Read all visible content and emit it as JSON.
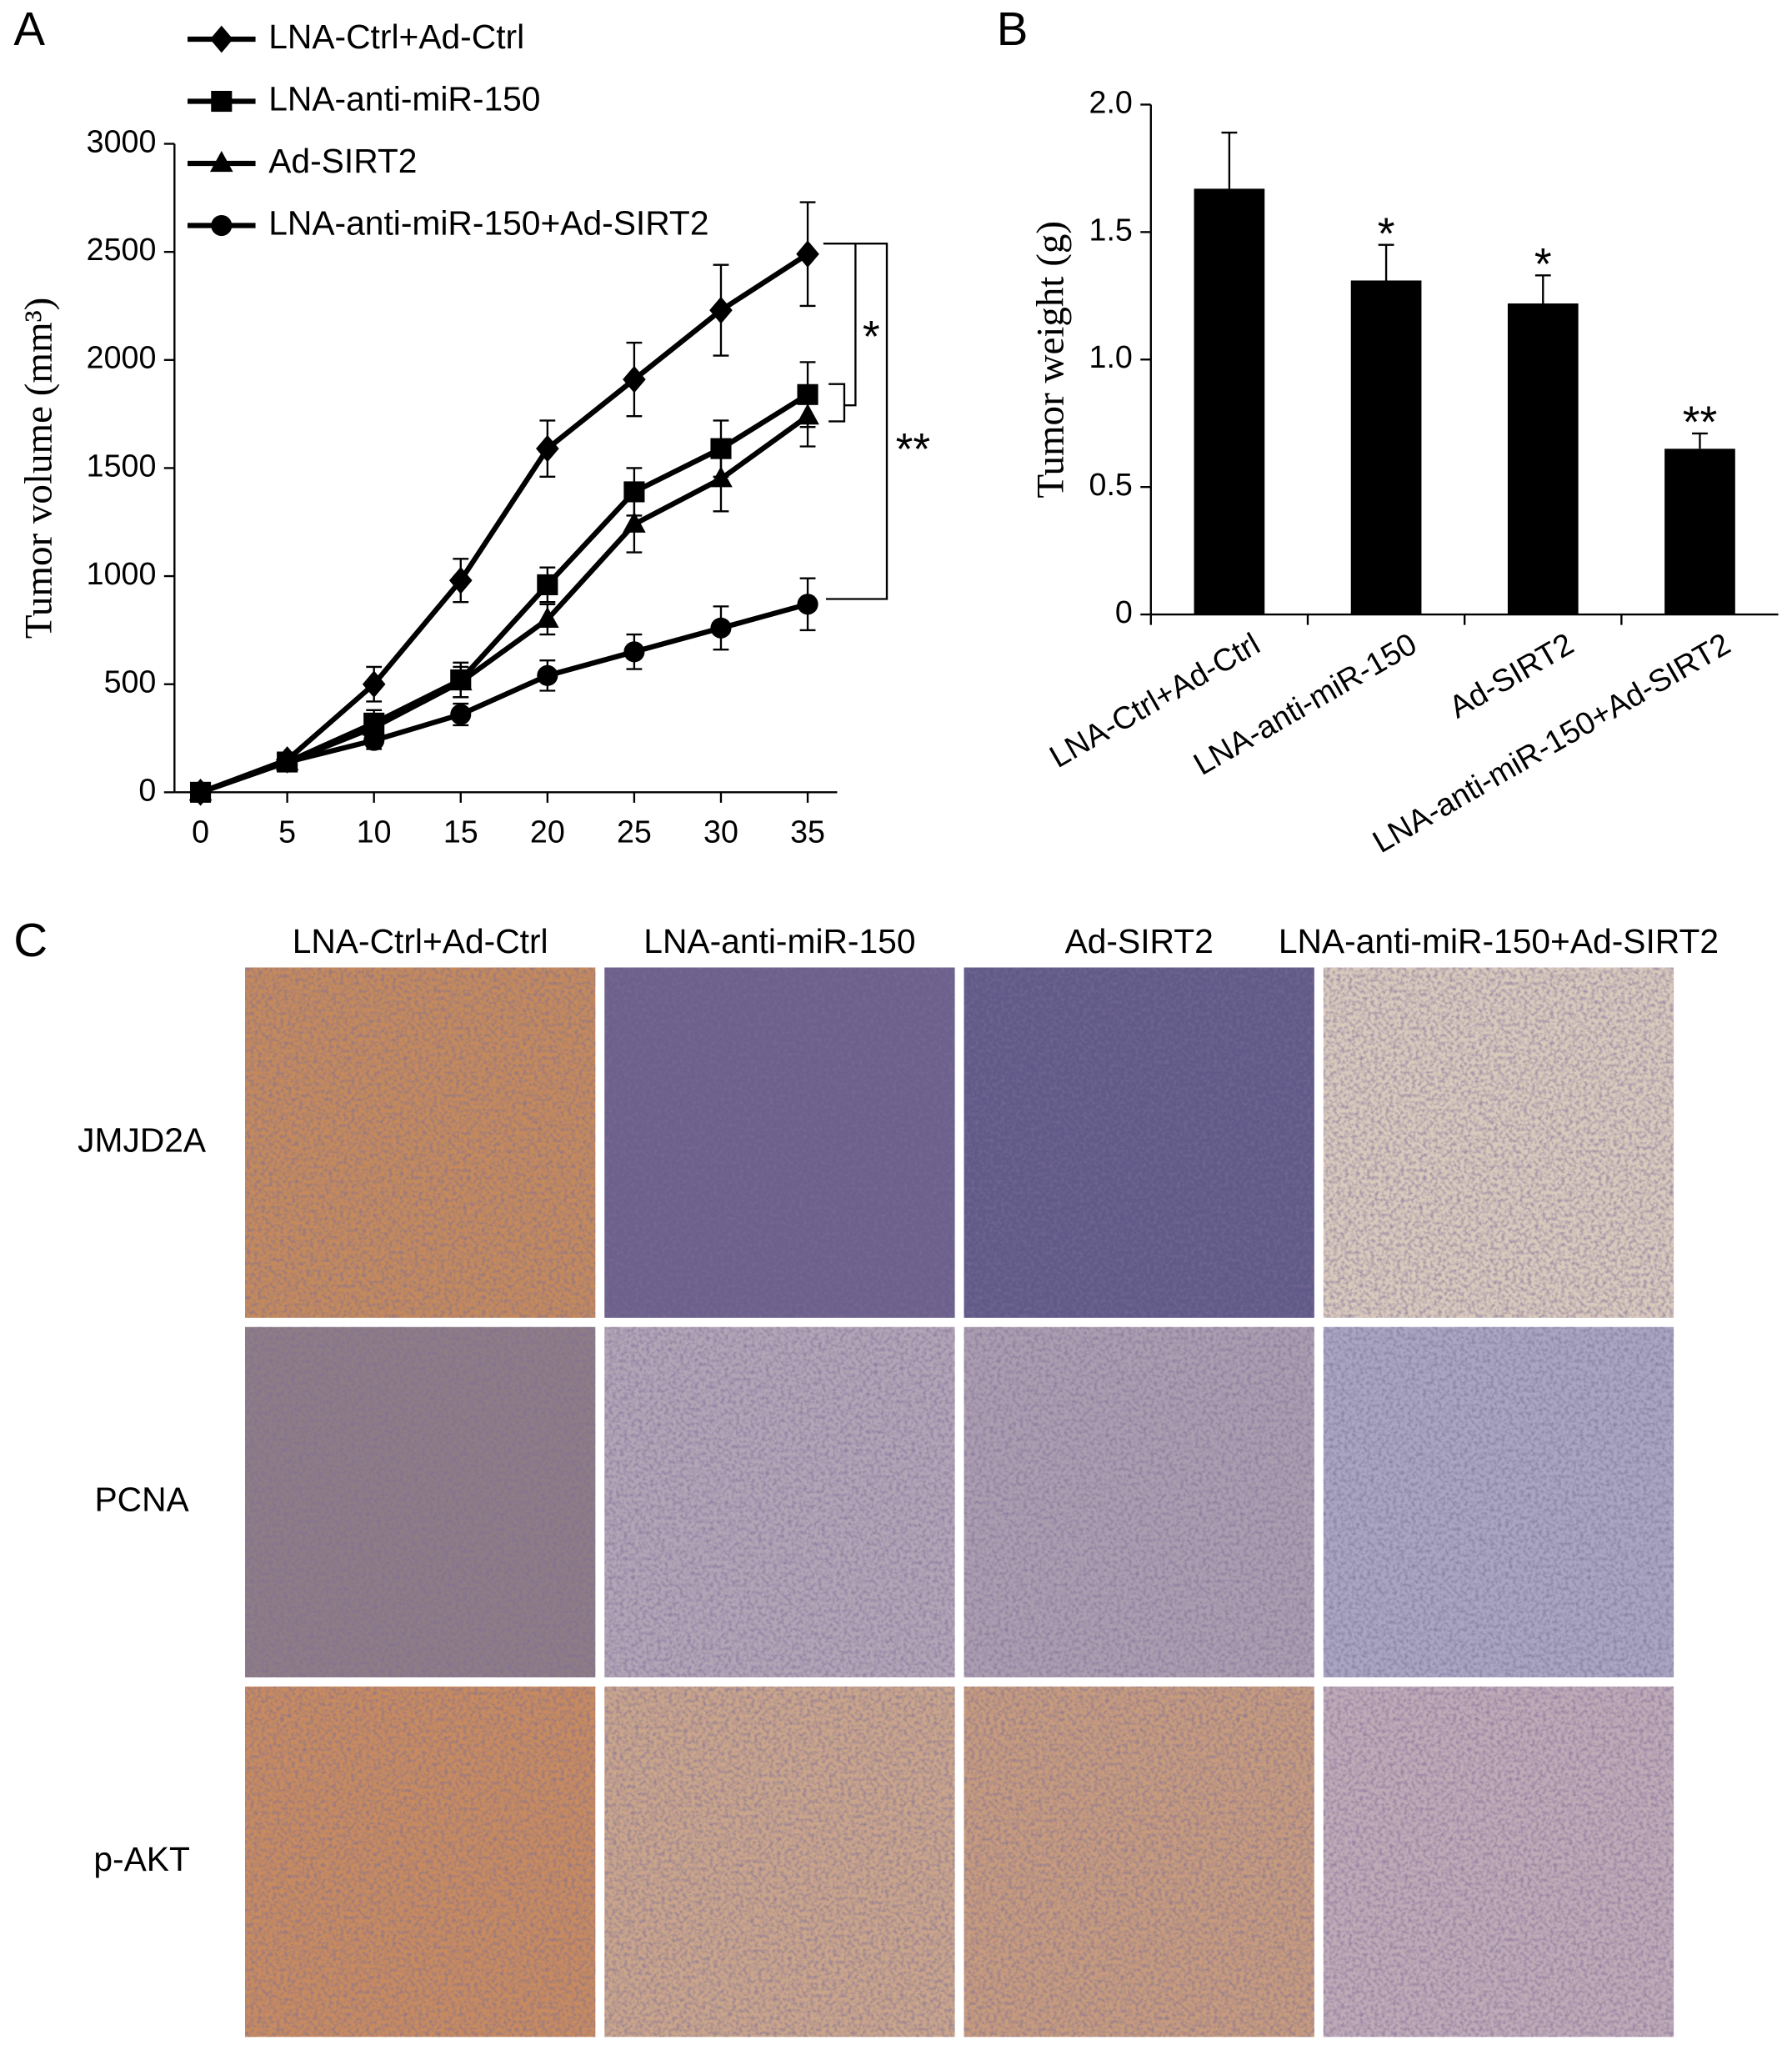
{
  "chart_data": [
    {
      "type": "line",
      "panel": "A",
      "y_label": "Tumor volume (mm³)",
      "x": [
        0,
        5,
        10,
        15,
        20,
        25,
        30,
        35
      ],
      "xlim": [
        -1.5,
        36.7
      ],
      "xticks": [
        0,
        5,
        10,
        15,
        20,
        25,
        30,
        35
      ],
      "ylim": [
        0,
        3000
      ],
      "yticks": [
        0,
        500,
        1000,
        1500,
        2000,
        2500,
        3000
      ],
      "series": [
        {
          "name": "LNA-Ctrl+Ad-Ctrl",
          "color": "#000000",
          "marker": "diamond",
          "values": [
            0,
            150,
            500,
            980,
            1590,
            1910,
            2230,
            2490
          ],
          "errors": [
            0,
            20,
            80,
            100,
            130,
            170,
            210,
            240
          ]
        },
        {
          "name": "LNA-anti-miR-150",
          "color": "#000000",
          "marker": "square",
          "values": [
            0,
            140,
            320,
            520,
            960,
            1390,
            1590,
            1840
          ],
          "errors": [
            0,
            20,
            60,
            80,
            80,
            110,
            130,
            150
          ]
        },
        {
          "name": "Ad-SIRT2",
          "color": "#000000",
          "marker": "triangle",
          "values": [
            0,
            140,
            300,
            510,
            800,
            1240,
            1450,
            1740
          ],
          "errors": [
            0,
            20,
            50,
            70,
            70,
            130,
            150,
            140
          ]
        },
        {
          "name": "LNA-anti-miR-150+Ad-SIRT2",
          "color": "#000000",
          "marker": "circle",
          "values": [
            0,
            140,
            240,
            360,
            540,
            650,
            760,
            870
          ],
          "errors": [
            0,
            20,
            40,
            50,
            70,
            80,
            100,
            120
          ]
        }
      ],
      "annotations": [
        "*",
        "**"
      ]
    },
    {
      "type": "bar",
      "panel": "B",
      "y_label": "Tumor weight (g)",
      "categories": [
        "LNA-Ctrl+Ad-Ctrl",
        "LNA-anti-miR-150",
        "Ad-SIRT2",
        "LNA-anti-miR-150+Ad-SIRT2"
      ],
      "values": [
        1.67,
        1.31,
        1.22,
        0.65
      ],
      "errors": [
        0.22,
        0.14,
        0.11,
        0.06
      ],
      "significance": [
        null,
        "*",
        "*",
        "**"
      ],
      "color": "#000000",
      "ylim": [
        0,
        2.0
      ],
      "yticks": [
        0,
        0.5,
        {
          "value": 1.0,
          "label": "1.0"
        },
        1.5,
        {
          "value": 2.0,
          "label": "2.0"
        }
      ]
    }
  ],
  "panel_c": {
    "label": "C",
    "columns": [
      "LNA-Ctrl+Ad-Ctrl",
      "LNA-anti-miR-150",
      "Ad-SIRT2",
      "LNA-anti-miR-150+Ad-SIRT2"
    ],
    "rows": [
      "JMJD2A",
      "PCNA",
      "p-AKT"
    ]
  }
}
